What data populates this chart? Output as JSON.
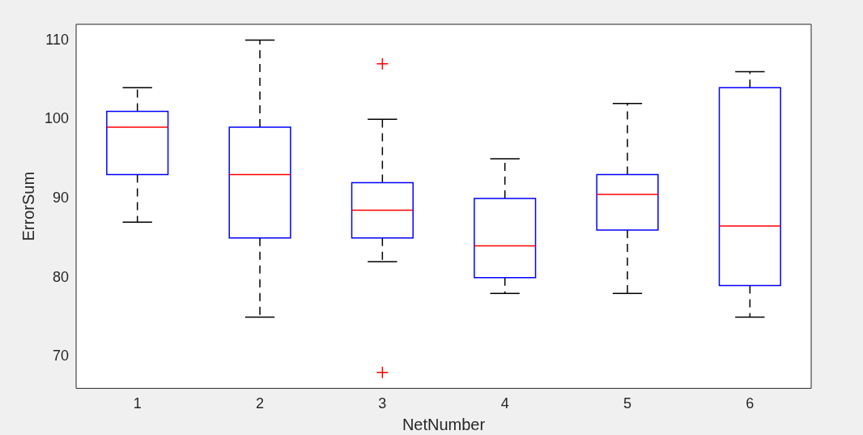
{
  "chart_data": {
    "type": "box",
    "xlabel": "NetNumber",
    "ylabel": "ErrorSum",
    "categories": [
      "1",
      "2",
      "3",
      "4",
      "5",
      "6"
    ],
    "color": "#0000ff",
    "ylim": [
      66,
      112
    ],
    "yticks": [
      70,
      80,
      90,
      100,
      110
    ],
    "grid": false,
    "boxes": [
      {
        "low": 87,
        "q1": 93,
        "median": 99,
        "q3": 101,
        "high": 104
      },
      {
        "low": 75,
        "q1": 85,
        "median": 93,
        "q3": 99,
        "high": 110
      },
      {
        "low": 82,
        "q1": 85,
        "median": 88.5,
        "q3": 92,
        "high": 100,
        "outliers": [
          107,
          68
        ]
      },
      {
        "low": 78,
        "q1": 80,
        "median": 84,
        "q3": 90,
        "high": 95
      },
      {
        "low": 78,
        "q1": 86,
        "median": 90.5,
        "q3": 93,
        "high": 102
      },
      {
        "low": 75,
        "q1": 79,
        "median": 86.5,
        "q3": 104,
        "high": 106
      }
    ]
  }
}
